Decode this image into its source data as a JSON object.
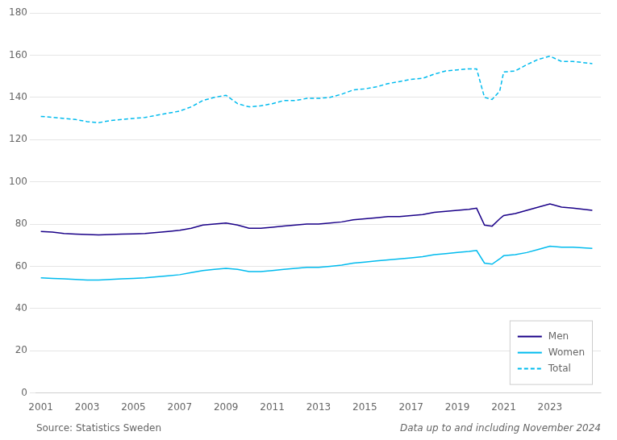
{
  "chart_data": {
    "type": "line",
    "annotations": [
      "Source: Statistics Sweden",
      "Data up to and including November 2024"
    ],
    "x": [
      2001.0,
      2001.5,
      2002.0,
      2002.5,
      2003.0,
      2003.5,
      2004.0,
      2004.5,
      2005.0,
      2005.5,
      2006.0,
      2006.5,
      2007.0,
      2007.5,
      2008.0,
      2008.5,
      2009.0,
      2009.5,
      2010.0,
      2010.5,
      2011.0,
      2011.5,
      2012.0,
      2012.5,
      2013.0,
      2013.5,
      2014.0,
      2014.5,
      2015.0,
      2015.5,
      2016.0,
      2016.5,
      2017.0,
      2017.5,
      2018.0,
      2018.5,
      2019.0,
      2019.5,
      2019.83,
      2020.17,
      2020.5,
      2020.83,
      2021.0,
      2021.5,
      2022.0,
      2022.5,
      2023.0,
      2023.5,
      2024.0,
      2024.83
    ],
    "series": [
      {
        "name": "Men",
        "color": "#1a0088",
        "line_style": "solid",
        "values": [
          76.5,
          76.2,
          75.5,
          75.2,
          75.0,
          74.8,
          75.0,
          75.2,
          75.3,
          75.5,
          76.0,
          76.5,
          77.0,
          78.0,
          79.5,
          80.0,
          80.5,
          79.5,
          78.0,
          78.0,
          78.5,
          79.0,
          79.5,
          80.0,
          80.0,
          80.5,
          81.0,
          82.0,
          82.5,
          83.0,
          83.5,
          83.5,
          84.0,
          84.5,
          85.5,
          86.0,
          86.5,
          87.0,
          87.5,
          79.5,
          79.0,
          82.5,
          84.0,
          85.0,
          86.5,
          88.0,
          89.5,
          88.0,
          87.5,
          86.5
        ]
      },
      {
        "name": "Women",
        "color": "#00bbee",
        "line_style": "solid",
        "values": [
          54.5,
          54.2,
          54.0,
          53.8,
          53.5,
          53.5,
          53.8,
          54.0,
          54.2,
          54.5,
          55.0,
          55.5,
          56.0,
          57.0,
          58.0,
          58.5,
          59.0,
          58.5,
          57.5,
          57.5,
          58.0,
          58.5,
          59.0,
          59.5,
          59.5,
          60.0,
          60.5,
          61.5,
          62.0,
          62.5,
          63.0,
          63.5,
          64.0,
          64.5,
          65.5,
          66.0,
          66.5,
          67.0,
          67.5,
          61.5,
          61.0,
          63.5,
          65.0,
          65.5,
          66.5,
          68.0,
          69.5,
          69.0,
          69.0,
          68.5
        ]
      },
      {
        "name": "Total",
        "color": "#00bbee",
        "line_style": "dashed",
        "values": [
          131.0,
          130.5,
          130.0,
          129.5,
          128.5,
          128.0,
          129.0,
          129.5,
          130.0,
          130.5,
          131.5,
          132.5,
          133.5,
          135.5,
          138.5,
          140.0,
          141.0,
          137.0,
          135.5,
          136.0,
          137.0,
          138.5,
          138.5,
          139.5,
          139.5,
          140.0,
          141.5,
          143.5,
          144.0,
          145.0,
          146.5,
          147.5,
          148.5,
          149.0,
          151.0,
          152.5,
          153.0,
          153.5,
          153.5,
          140.0,
          139.0,
          143.0,
          152.0,
          152.5,
          155.5,
          158.0,
          159.5,
          157.0,
          157.0,
          156.0
        ]
      }
    ],
    "xlim": [
      2000.8,
      2025.2
    ],
    "xticks": [
      2001,
      2003,
      2005,
      2007,
      2009,
      2011,
      2013,
      2015,
      2017,
      2019,
      2021,
      2023
    ],
    "ylim": [
      0,
      180
    ],
    "yticks": [
      0,
      20,
      40,
      60,
      80,
      100,
      120,
      140,
      160,
      180
    ],
    "grid": "y",
    "legend": "lower right"
  }
}
